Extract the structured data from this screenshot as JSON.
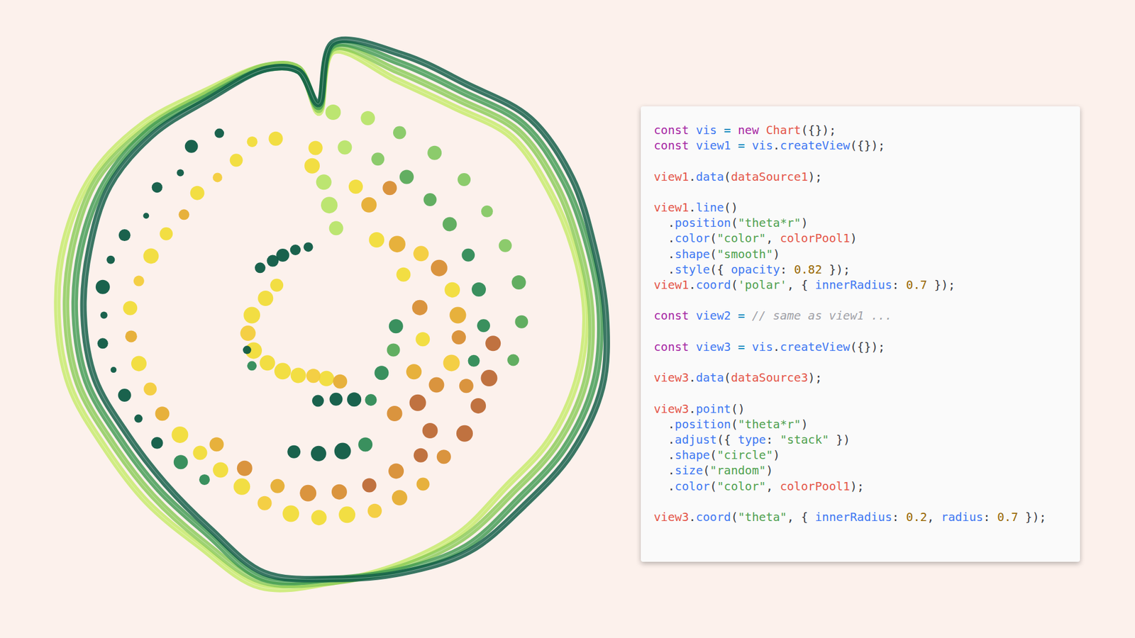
{
  "chart_data": [
    {
      "type": "line",
      "rlim": [
        0,
        1.08
      ],
      "tick_labels": false,
      "grid": false,
      "theta": [
        0,
        15,
        30,
        45,
        60,
        75,
        90,
        105,
        120,
        135,
        150,
        165,
        180,
        195,
        210,
        225,
        240,
        255,
        270,
        285,
        300,
        315,
        330,
        345,
        352,
        356
      ],
      "series": [
        {
          "color": "#c6ea6a",
          "values": [
            0.91,
            0.84,
            0.83,
            0.87,
            0.86,
            0.86,
            0.87,
            0.87,
            0.86,
            0.84,
            0.87,
            0.89,
            0.92,
            0.97,
            0.92,
            0.91,
            0.91,
            0.94,
            0.95,
            0.96,
            0.96,
            0.93,
            0.89,
            0.89,
            0.86,
            0.7
          ]
        },
        {
          "color": "#8acb58",
          "values": [
            0.92,
            0.87,
            0.86,
            0.9,
            0.89,
            0.88,
            0.89,
            0.9,
            0.89,
            0.87,
            0.89,
            0.9,
            0.92,
            0.95,
            0.9,
            0.88,
            0.88,
            0.91,
            0.92,
            0.93,
            0.94,
            0.91,
            0.88,
            0.89,
            0.86,
            0.71
          ]
        },
        {
          "color": "#3f9a52",
          "values": [
            0.93,
            0.9,
            0.89,
            0.93,
            0.92,
            0.91,
            0.92,
            0.93,
            0.92,
            0.9,
            0.92,
            0.91,
            0.91,
            0.94,
            0.87,
            0.85,
            0.85,
            0.88,
            0.89,
            0.9,
            0.91,
            0.9,
            0.87,
            0.88,
            0.85,
            0.72
          ]
        },
        {
          "color": "#0d5a44",
          "values": [
            0.94,
            0.93,
            0.92,
            0.96,
            0.95,
            0.93,
            0.94,
            0.96,
            0.95,
            0.93,
            0.94,
            0.92,
            0.91,
            0.92,
            0.85,
            0.82,
            0.82,
            0.85,
            0.86,
            0.87,
            0.89,
            0.88,
            0.86,
            0.88,
            0.85,
            0.73
          ]
        }
      ]
    },
    {
      "type": "scatter",
      "rlim": [
        0,
        1.08
      ],
      "tick_labels": false,
      "grid": false,
      "theta": [
        328,
        320,
        313,
        306,
        298,
        291,
        284,
        277,
        270,
        263,
        256,
        249,
        242,
        234,
        226,
        218,
        342,
        335,
        328,
        320,
        312,
        304,
        296,
        288,
        280,
        272,
        264,
        256,
        248,
        240,
        232,
        224,
        216,
        208,
        200,
        192,
        184,
        176,
        168,
        160,
        152,
        222,
        210,
        198,
        188,
        178,
        168,
        158,
        148,
        303,
        312,
        320,
        330,
        340,
        248,
        238,
        190,
        178,
        166,
        156,
        196,
        186,
        176,
        166,
        298,
        284,
        270,
        258,
        246,
        234,
        222,
        210,
        198,
        186,
        174,
        30,
        42,
        55,
        66,
        78,
        90,
        100,
        112,
        124,
        136,
        148,
        60,
        85,
        105,
        125,
        100,
        112,
        122,
        132,
        142,
        118,
        140,
        0,
        10,
        20,
        32,
        44,
        56,
        68,
        80,
        92,
        104,
        4,
        16,
        28,
        40,
        52,
        66,
        80,
        94,
        108,
        356,
        358,
        2,
        10,
        18,
        24,
        100,
        120,
        140,
        354,
        352
      ],
      "r": [
        0.74,
        0.76,
        0.72,
        0.75,
        0.73,
        0.77,
        0.79,
        0.8,
        0.79,
        0.8,
        0.78,
        0.77,
        0.76,
        0.75,
        0.73,
        0.72,
        0.64,
        0.66,
        0.63,
        0.62,
        0.63,
        0.62,
        0.64,
        0.66,
        0.68,
        0.7,
        0.7,
        0.69,
        0.68,
        0.68,
        0.67,
        0.66,
        0.66,
        0.67,
        0.69,
        0.7,
        0.7,
        0.69,
        0.69,
        0.67,
        0.66,
        0.6,
        0.61,
        0.62,
        0.62,
        0.61,
        0.6,
        0.58,
        0.57,
        0.3,
        0.28,
        0.27,
        0.26,
        0.25,
        0.32,
        0.33,
        0.3,
        0.29,
        0.3,
        0.32,
        0.49,
        0.48,
        0.47,
        0.46,
        0.22,
        0.24,
        0.28,
        0.3,
        0.3,
        0.28,
        0.26,
        0.24,
        0.22,
        0.22,
        0.23,
        0.3,
        0.33,
        0.37,
        0.4,
        0.42,
        0.43,
        0.44,
        0.44,
        0.43,
        0.42,
        0.4,
        0.28,
        0.3,
        0.32,
        0.34,
        0.56,
        0.58,
        0.59,
        0.61,
        0.62,
        0.52,
        0.52,
        0.7,
        0.69,
        0.67,
        0.66,
        0.65,
        0.64,
        0.64,
        0.65,
        0.65,
        0.64,
        0.58,
        0.56,
        0.54,
        0.52,
        0.51,
        0.51,
        0.51,
        0.52,
        0.51,
        0.46,
        0.38,
        0.3,
        0.45,
        0.4,
        0.48,
        0.22,
        0.24,
        0.26,
        0.58,
        0.52
      ],
      "size": [
        8,
        11,
        6,
        9,
        5,
        10,
        7,
        12,
        6,
        9,
        5,
        11,
        7,
        10,
        12,
        9,
        12,
        9,
        11,
        8,
        12,
        9,
        11,
        13,
        9,
        12,
        10,
        13,
        11,
        12,
        14,
        12,
        13,
        14,
        12,
        14,
        13,
        14,
        12,
        13,
        11,
        12,
        13,
        12,
        14,
        13,
        12,
        13,
        12,
        9,
        10,
        11,
        9,
        8,
        7,
        8,
        10,
        11,
        12,
        10,
        11,
        13,
        14,
        12,
        11,
        13,
        14,
        13,
        14,
        13,
        14,
        13,
        12,
        13,
        12,
        13,
        14,
        13,
        14,
        13,
        14,
        12,
        14,
        13,
        14,
        13,
        12,
        13,
        12,
        13,
        13,
        14,
        13,
        14,
        12,
        12,
        13,
        13,
        12,
        11,
        12,
        11,
        10,
        11,
        12,
        11,
        10,
        12,
        11,
        12,
        11,
        12,
        11,
        12,
        11,
        10,
        13,
        14,
        12,
        12,
        13,
        12,
        12,
        11,
        12,
        12,
        13
      ],
      "colors": [
        "#0e5a44",
        "#0e5a44",
        "#0e5a44",
        "#0e5a44",
        "#0e5a44",
        "#0e5a44",
        "#0e5a44",
        "#0e5a44",
        "#0e5a44",
        "#0e5a44",
        "#0e5a44",
        "#0e5a44",
        "#0e5a44",
        "#0e5a44",
        "#2f8a56",
        "#2f8a56",
        "#f1dc3a",
        "#f1dc3a",
        "#f1dc3a",
        "#f3cc3c",
        "#f1dc3a",
        "#e6ad33",
        "#f1dc3a",
        "#f1dc3a",
        "#f3cc3c",
        "#f1dc3a",
        "#e6ad33",
        "#f1dc3a",
        "#f3cc3c",
        "#e6ad33",
        "#f1dc3a",
        "#f1dc3a",
        "#f1dc3a",
        "#f1dc3a",
        "#f3cc3c",
        "#f1dc3a",
        "#f1dc3a",
        "#f1dc3a",
        "#f3cc3c",
        "#e6ad33",
        "#e6ad33",
        "#e6ad33",
        "#d88e35",
        "#e6ad33",
        "#d88e35",
        "#d88e35",
        "#bd6a37",
        "#d88e35",
        "#bd6a37",
        "#0e5a44",
        "#0e5a44",
        "#0e5a44",
        "#0e5a44",
        "#0e5a44",
        "#0e5a44",
        "#2f8a56",
        "#0e5a44",
        "#0e5a44",
        "#0e5a44",
        "#2f8a56",
        "#0e5a44",
        "#0e5a44",
        "#0e5a44",
        "#2f8a56",
        "#f1dc3a",
        "#f1dc3a",
        "#f1dc3a",
        "#f3cc3c",
        "#f1dc3a",
        "#f1dc3a",
        "#f1dc3a",
        "#f1dc3a",
        "#f3cc3c",
        "#f1dc3a",
        "#e6ad33",
        "#f1dc3a",
        "#e6ad33",
        "#f3cc3c",
        "#d88e35",
        "#f1dc3a",
        "#e6ad33",
        "#d88e35",
        "#f3cc3c",
        "#d88e35",
        "#bd6a37",
        "#d88e35",
        "#f1dc3a",
        "#d88e35",
        "#f1dc3a",
        "#e6ad33",
        "#bd6a37",
        "#bd6a37",
        "#bd6a37",
        "#bd6a37",
        "#d88e35",
        "#d88e35",
        "#bd6a37",
        "#b8e46a",
        "#b8e46a",
        "#86c865",
        "#86c865",
        "#86c865",
        "#86c865",
        "#86c865",
        "#5aaa5a",
        "#5aaa5a",
        "#5aaa5a",
        "#b8e46a",
        "#86c865",
        "#5aaa5a",
        "#5aaa5a",
        "#5aaa5a",
        "#2f8a56",
        "#2f8a56",
        "#2f8a56",
        "#2f8a56",
        "#b8e46a",
        "#b8e46a",
        "#b8e46a",
        "#f1dc3a",
        "#e6ad33",
        "#d88e35",
        "#2f8a56",
        "#5aaa5a",
        "#2f8a56",
        "#f1dc3a",
        "#f1dc3a"
      ]
    }
  ],
  "code": {
    "blocks": [
      [
        "const vis = new Chart({});",
        "const view1 = vis.createView({});"
      ],
      [
        "view1.data(dataSource1);"
      ],
      [
        "view1.line()",
        "  .position(\"theta*r\")",
        "  .color(\"color\", colorPool1)",
        "  .shape(\"smooth\")",
        "  .style({ opacity: 0.82 });",
        "view1.coord('polar', { innerRadius: 0.7 });"
      ],
      [
        "const view2 = // same as view1 ..."
      ],
      [
        "const view3 = vis.createView({});"
      ],
      [
        "view3.data(dataSource3);"
      ],
      [
        "view3.point()",
        "  .position(\"theta*r\")",
        "  .adjust({ type: \"stack\" })",
        "  .shape(\"circle\")",
        "  .size(\"random\")",
        "  .color(\"color\", colorPool1);"
      ],
      [
        "view3.coord(\"theta\", { innerRadius: 0.2, radius: 0.7 });"
      ]
    ]
  }
}
